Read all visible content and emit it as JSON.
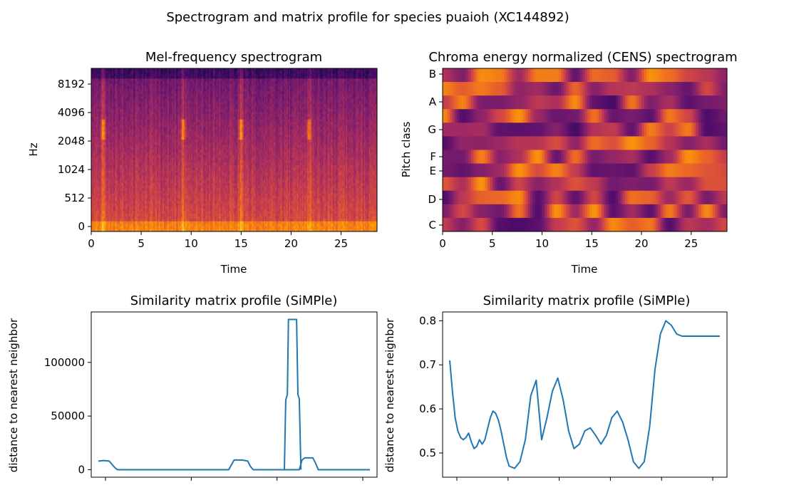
{
  "figure": {
    "suptitle": "Spectrogram and matrix profile for species puaioh (XC144892)"
  },
  "colors": {
    "colormap_magma": [
      "#1b0c41",
      "#4f0c6b",
      "#781c6d",
      "#a52c60",
      "#cf4446",
      "#ed6925",
      "#fb9b06",
      "#f7d13d"
    ],
    "line": "#1f77b4",
    "axis": "#000000"
  },
  "chart_data": [
    {
      "type": "heatmap",
      "title": "Mel-frequency spectrogram",
      "xlabel": "Time",
      "ylabel": "Hz",
      "xlim": [
        0,
        28.6
      ],
      "xticks": [
        0,
        5,
        10,
        15,
        20,
        25
      ],
      "yticks": [
        "0",
        "512",
        "1024",
        "2048",
        "4096",
        "8192"
      ],
      "bursts_at_time": [
        1.2,
        9.2,
        15.0,
        21.8
      ],
      "colormap": "magma"
    },
    {
      "type": "heatmap",
      "title": "Chroma energy normalized (CENS) spectrogram",
      "xlabel": "Time",
      "ylabel": "Pitch class",
      "xlim": [
        0,
        28.6
      ],
      "xticks": [
        0,
        5,
        10,
        15,
        20,
        25
      ],
      "yticks": [
        "C",
        "D",
        "E",
        "F",
        "G",
        "A",
        "B"
      ],
      "colormap": "magma"
    },
    {
      "type": "line",
      "title": "Similarity matrix profile (SiMPle)",
      "xlabel": "",
      "ylabel": "distance to nearest neighbor",
      "yticks": [
        0,
        50000,
        100000
      ],
      "ylim": [
        -7000,
        147000
      ],
      "xlim": [
        0,
        100
      ],
      "xtick_count": 4,
      "x": [
        0,
        2,
        4,
        5,
        6,
        7,
        10,
        20,
        30,
        40,
        48,
        50,
        51,
        53,
        55,
        56,
        57,
        60,
        65,
        70,
        74,
        75,
        76,
        77,
        79,
        80,
        81,
        82,
        83,
        84,
        85,
        86,
        87,
        88,
        89,
        90,
        92,
        94,
        96,
        98,
        99,
        100
      ],
      "values": [
        8000,
        8500,
        8000,
        5000,
        2000,
        0,
        0,
        0,
        0,
        0,
        0,
        9000,
        9000,
        9000,
        8000,
        3000,
        0,
        0,
        0,
        0,
        0,
        9000,
        11000,
        11000,
        11000,
        6000,
        0,
        0,
        0,
        0,
        0,
        0,
        0,
        0,
        0,
        0,
        0,
        0,
        0,
        0,
        0,
        0
      ]
    },
    {
      "type": "line",
      "title": "Similarity matrix profile (SiMPle)",
      "xlabel": "",
      "ylabel": "distance to nearest neighbor",
      "yticks": [
        0.5,
        0.6,
        0.7,
        0.8
      ],
      "ylim": [
        0.445,
        0.82
      ],
      "xlim": [
        0,
        100
      ],
      "xtick_count": 6,
      "x": [
        0,
        1,
        2,
        3,
        4,
        5,
        6,
        7,
        8,
        9,
        10,
        11,
        12,
        13,
        14,
        15,
        16,
        17,
        18,
        19,
        20,
        21,
        22,
        24,
        26,
        28,
        30,
        32,
        34,
        36,
        38,
        40,
        42,
        44,
        46,
        48,
        50,
        52,
        54,
        56,
        58,
        60,
        62,
        64,
        66,
        68,
        70,
        72,
        74,
        76,
        78,
        80,
        82,
        84,
        86,
        88,
        90,
        92,
        94,
        96,
        98,
        100
      ],
      "values": [
        0.71,
        0.64,
        0.58,
        0.55,
        0.535,
        0.53,
        0.535,
        0.545,
        0.525,
        0.51,
        0.515,
        0.53,
        0.52,
        0.53,
        0.555,
        0.58,
        0.595,
        0.59,
        0.575,
        0.55,
        0.52,
        0.49,
        0.47,
        0.465,
        0.48,
        0.53,
        0.63,
        0.665,
        0.53,
        0.58,
        0.64,
        0.67,
        0.62,
        0.55,
        0.51,
        0.52,
        0.55,
        0.557,
        0.54,
        0.52,
        0.54,
        0.58,
        0.595,
        0.57,
        0.53,
        0.48,
        0.465,
        0.48,
        0.56,
        0.69,
        0.77,
        0.8,
        0.79,
        0.77,
        0.765,
        0.765,
        0.765,
        0.765,
        0.765,
        0.765,
        0.765,
        0.765
      ]
    }
  ]
}
